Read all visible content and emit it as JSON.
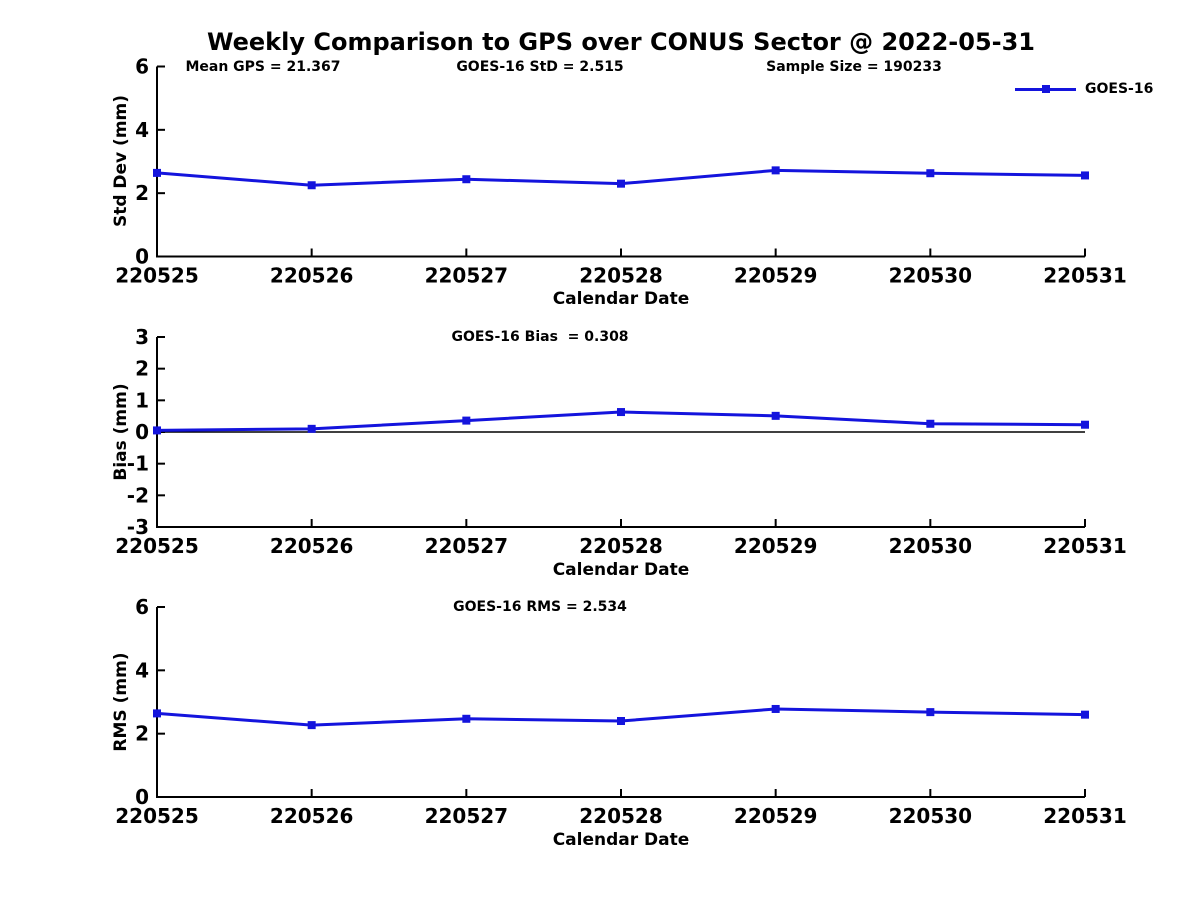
{
  "header": {
    "title": "Weekly Comparison to GPS over CONUS Sector @ 2022-05-31"
  },
  "colors": {
    "series_blue": "#1414dd",
    "axis_black": "#000000",
    "background": "#ffffff"
  },
  "legend": {
    "label": "GOES-16"
  },
  "chart_data": [
    {
      "type": "line",
      "categories": [
        "220525",
        "220526",
        "220527",
        "220528",
        "220529",
        "220530",
        "220531"
      ],
      "series": [
        {
          "name": "GOES-16",
          "values": [
            2.64,
            2.25,
            2.44,
            2.3,
            2.72,
            2.63,
            2.56
          ]
        }
      ],
      "ylabel": "Std Dev (mm)",
      "xlabel": "Calendar Date",
      "ylim": [
        0,
        6
      ],
      "yticks": [
        0,
        2,
        4,
        6
      ],
      "annotations": [
        "Mean GPS = 21.367",
        "GOES-16 StD = 2.515",
        "Sample Size = 190233"
      ],
      "legend_position": "top-right",
      "grid": false,
      "zero_line": false
    },
    {
      "type": "line",
      "categories": [
        "220525",
        "220526",
        "220527",
        "220528",
        "220529",
        "220530",
        "220531"
      ],
      "series": [
        {
          "name": "GOES-16",
          "values": [
            0.05,
            0.1,
            0.36,
            0.63,
            0.51,
            0.26,
            0.23
          ]
        }
      ],
      "ylabel": "Bias (mm)",
      "xlabel": "Calendar Date",
      "ylim": [
        -3,
        3
      ],
      "yticks": [
        -3,
        -2,
        -1,
        0,
        1,
        2,
        3
      ],
      "annotations": [
        "GOES-16 Bias  = 0.308"
      ],
      "legend_position": "none",
      "grid": false,
      "zero_line": true
    },
    {
      "type": "line",
      "categories": [
        "220525",
        "220526",
        "220527",
        "220528",
        "220529",
        "220530",
        "220531"
      ],
      "series": [
        {
          "name": "GOES-16",
          "values": [
            2.64,
            2.27,
            2.47,
            2.4,
            2.78,
            2.68,
            2.6
          ]
        }
      ],
      "ylabel": "RMS (mm)",
      "xlabel": "Calendar Date",
      "ylim": [
        0,
        6
      ],
      "yticks": [
        0,
        2,
        4,
        6
      ],
      "annotations": [
        "GOES-16 RMS = 2.534"
      ],
      "legend_position": "none",
      "grid": false,
      "zero_line": false
    }
  ]
}
